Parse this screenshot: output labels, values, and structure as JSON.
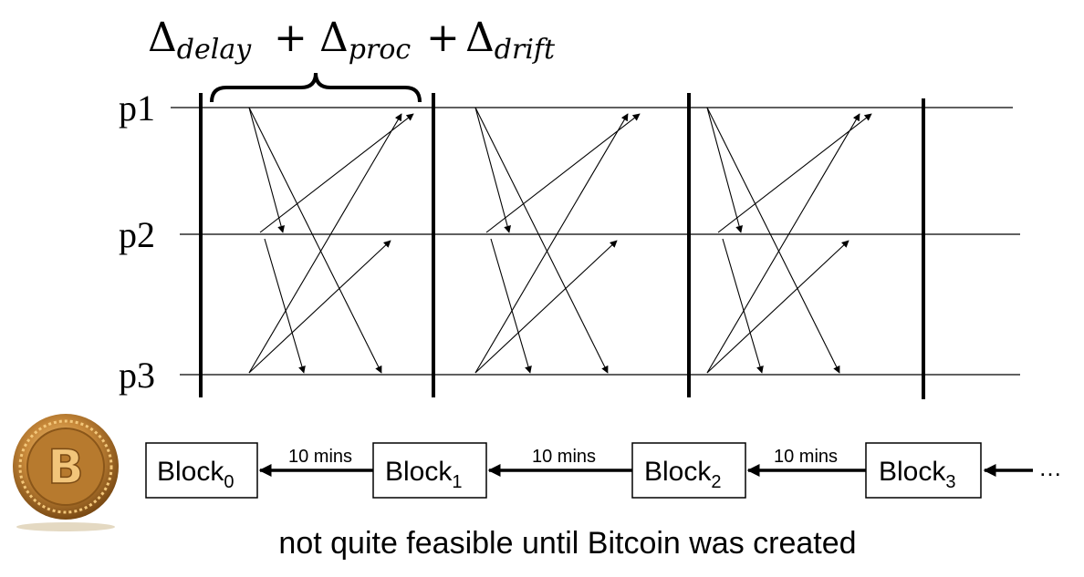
{
  "formula": {
    "parts": [
      {
        "symbol": "Δ",
        "sub": "delay"
      },
      {
        "op": "+"
      },
      {
        "symbol": "Δ",
        "sub": "proc"
      },
      {
        "op": "+"
      },
      {
        "symbol": "Δ",
        "sub": "drift"
      }
    ]
  },
  "processes": [
    "p1",
    "p2",
    "p3"
  ],
  "chain": {
    "blocks": [
      {
        "name": "Block",
        "index": "0"
      },
      {
        "name": "Block",
        "index": "1"
      },
      {
        "name": "Block",
        "index": "2"
      },
      {
        "name": "Block",
        "index": "3"
      }
    ],
    "link_labels": [
      "10 mins",
      "10 mins",
      "10 mins"
    ],
    "ellipsis": "…"
  },
  "caption": "not quite feasible until Bitcoin was created",
  "coin_letter": "B",
  "colors": {
    "ink": "#000000",
    "coin_gold": "#c8893a",
    "coin_dark": "#7a4a14",
    "coin_light": "#f3c77a"
  }
}
